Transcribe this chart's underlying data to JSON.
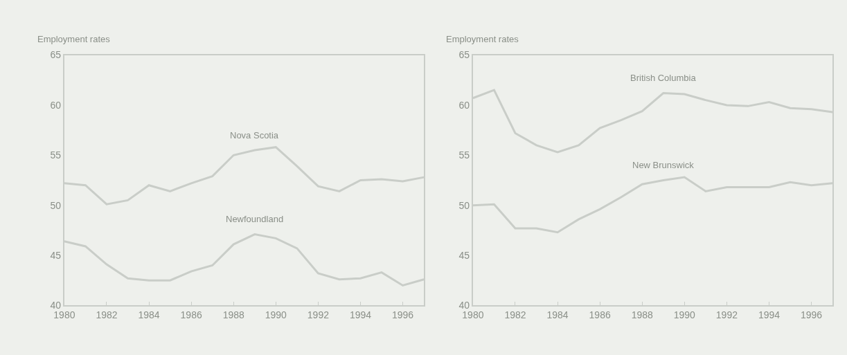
{
  "chart_data": [
    {
      "type": "line",
      "ylabel": "Employment rates",
      "x": [
        1980,
        1981,
        1982,
        1983,
        1984,
        1985,
        1986,
        1987,
        1988,
        1989,
        1990,
        1991,
        1992,
        1993,
        1994,
        1995,
        1996,
        1997
      ],
      "xlim": [
        1980,
        1997
      ],
      "xticks": [
        1980,
        1982,
        1984,
        1986,
        1988,
        1990,
        1992,
        1994,
        1996
      ],
      "ylim": [
        40,
        65
      ],
      "yticks": [
        40,
        45,
        50,
        55,
        60,
        65
      ],
      "grid": false,
      "legend": false,
      "series": [
        {
          "name": "Nova Scotia",
          "color": "#c9cdc8",
          "values": [
            52.2,
            52.0,
            50.1,
            50.5,
            52.0,
            51.4,
            52.2,
            52.9,
            55.0,
            55.5,
            55.8,
            53.9,
            51.9,
            51.4,
            52.5,
            52.6,
            52.4,
            52.8
          ]
        },
        {
          "name": "Newfoundland",
          "color": "#c9cdc8",
          "values": [
            46.4,
            45.9,
            44.1,
            42.7,
            42.5,
            42.5,
            43.4,
            44.0,
            46.1,
            47.1,
            46.7,
            45.7,
            43.2,
            42.6,
            42.7,
            43.3,
            42.0,
            42.6
          ]
        }
      ]
    },
    {
      "type": "line",
      "ylabel": "Employment rates",
      "x": [
        1980,
        1981,
        1982,
        1983,
        1984,
        1985,
        1986,
        1987,
        1988,
        1989,
        1990,
        1991,
        1992,
        1993,
        1994,
        1995,
        1996,
        1997
      ],
      "xlim": [
        1980,
        1997
      ],
      "xticks": [
        1980,
        1982,
        1984,
        1986,
        1988,
        1990,
        1992,
        1994,
        1996
      ],
      "ylim": [
        40,
        65
      ],
      "yticks": [
        40,
        45,
        50,
        55,
        60,
        65
      ],
      "grid": false,
      "legend": false,
      "series": [
        {
          "name": "British Columbia",
          "color": "#c9cdc8",
          "values": [
            60.7,
            61.5,
            57.2,
            56.0,
            55.3,
            56.0,
            57.7,
            58.5,
            59.4,
            61.2,
            61.1,
            60.5,
            60.0,
            59.9,
            60.3,
            59.7,
            59.6,
            59.3
          ]
        },
        {
          "name": "New Brunswick",
          "color": "#c9cdc8",
          "values": [
            50.0,
            50.1,
            47.7,
            47.7,
            47.3,
            48.6,
            49.6,
            50.8,
            52.1,
            52.5,
            52.8,
            51.4,
            51.8,
            51.8,
            51.8,
            52.3,
            52.0,
            52.2
          ]
        }
      ]
    }
  ]
}
